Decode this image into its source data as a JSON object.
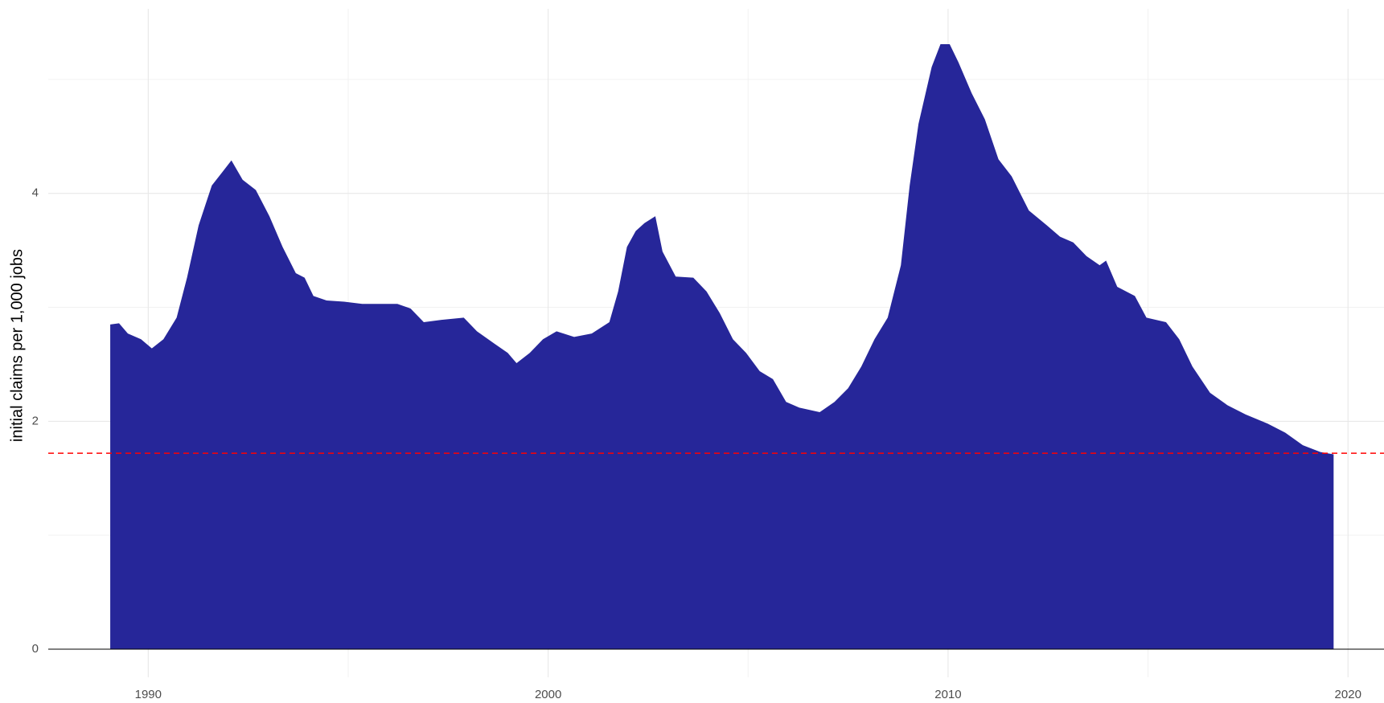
{
  "chart_data": {
    "type": "area",
    "y_label": "initial claims per 1,000 jobs",
    "color": "#262699",
    "x": [
      1989.05,
      1989.27,
      1989.49,
      1989.82,
      1990.09,
      1990.38,
      1990.71,
      1990.97,
      1991.26,
      1991.59,
      1991.86,
      1992.08,
      1992.36,
      1992.69,
      1993.03,
      1993.36,
      1993.69,
      1993.91,
      1994.13,
      1994.46,
      1994.9,
      1995.35,
      1995.79,
      1996.23,
      1996.56,
      1996.89,
      1997.33,
      1997.89,
      1998.22,
      1998.66,
      1998.99,
      1999.21,
      1999.54,
      1999.87,
      2000.21,
      2000.65,
      2001.09,
      2001.53,
      2001.75,
      2001.97,
      2002.19,
      2002.41,
      2002.68,
      2002.86,
      2003.19,
      2003.63,
      2003.96,
      2004.29,
      2004.62,
      2004.95,
      2005.29,
      2005.62,
      2005.95,
      2006.28,
      2006.79,
      2007.16,
      2007.5,
      2007.83,
      2008.16,
      2008.49,
      2008.82,
      2009.04,
      2009.26,
      2009.59,
      2009.81,
      2010.04,
      2010.26,
      2010.59,
      2010.92,
      2011.26,
      2011.59,
      2012.02,
      2012.47,
      2012.8,
      2013.13,
      2013.46,
      2013.79,
      2013.95,
      2014.23,
      2014.67,
      2014.96,
      2015.45,
      2015.78,
      2016.11,
      2016.55,
      2016.99,
      2017.44,
      2017.99,
      2018.43,
      2018.87,
      2019.31,
      2019.64
    ],
    "values": [
      2.85,
      2.86,
      2.77,
      2.72,
      2.64,
      2.72,
      2.91,
      3.26,
      3.72,
      4.07,
      4.19,
      4.29,
      4.12,
      4.03,
      3.8,
      3.53,
      3.3,
      3.26,
      3.1,
      3.06,
      3.05,
      3.03,
      3.03,
      3.03,
      2.99,
      2.87,
      2.89,
      2.91,
      2.79,
      2.68,
      2.6,
      2.51,
      2.6,
      2.72,
      2.79,
      2.74,
      2.77,
      2.87,
      3.14,
      3.53,
      3.67,
      3.74,
      3.8,
      3.49,
      3.27,
      3.26,
      3.14,
      2.95,
      2.72,
      2.6,
      2.44,
      2.37,
      2.17,
      2.12,
      2.08,
      2.17,
      2.29,
      2.48,
      2.72,
      2.91,
      3.37,
      4.07,
      4.61,
      5.11,
      5.31,
      5.31,
      5.15,
      4.88,
      4.65,
      4.3,
      4.15,
      3.85,
      3.72,
      3.62,
      3.57,
      3.45,
      3.37,
      3.41,
      3.18,
      3.1,
      2.91,
      2.87,
      2.72,
      2.48,
      2.25,
      2.14,
      2.06,
      1.98,
      1.9,
      1.79,
      1.73,
      1.71
    ],
    "hline": {
      "value": 1.72,
      "color": "#ff0000"
    },
    "xlim": [
      1987.5,
      2020.9
    ],
    "xticks": [
      1990,
      2000,
      2010,
      2020
    ],
    "x_minor_ticks": [
      1995,
      2005,
      2015
    ],
    "ylim": [
      0,
      5.62
    ],
    "yticks": [
      0,
      2,
      4
    ],
    "y_minor_ticks": [
      1,
      3,
      5
    ],
    "grid": true
  }
}
